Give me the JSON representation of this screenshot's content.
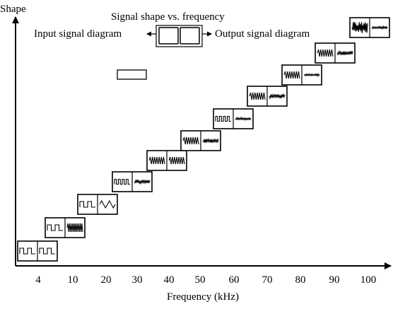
{
  "y_axis_label": "Shape",
  "x_axis_label": "Frequency (kHz)",
  "legend": {
    "title": "Signal shape vs. frequency",
    "input_label": "Input signal diagram",
    "output_label": "Output signal diagram"
  },
  "x_ticks": [
    "4",
    "10",
    "20",
    "30",
    "40",
    "50",
    "60",
    "70",
    "80",
    "90",
    "100"
  ],
  "chart_data": {
    "type": "scatter",
    "xlabel": "Frequency (kHz)",
    "ylabel": "Shape",
    "x_ticks": [
      4,
      10,
      20,
      30,
      40,
      50,
      60,
      70,
      80,
      90,
      100
    ],
    "points": [
      {
        "frequency": 4,
        "input": "square",
        "output": "square"
      },
      {
        "frequency": 10,
        "input": "square",
        "output": "sawtooth-dense"
      },
      {
        "frequency": 20,
        "input": "square",
        "output": "triangle"
      },
      {
        "frequency": 30,
        "input": "square-dense",
        "output": "noisy"
      },
      {
        "frequency": 40,
        "input": "sawtooth",
        "output": "sawtooth"
      },
      {
        "frequency": 50,
        "input": "sawtooth",
        "output": "noisy"
      },
      {
        "frequency": 60,
        "input": "square-dense",
        "output": "noisy-small"
      },
      {
        "frequency": 70,
        "input": "sawtooth",
        "output": "noisy"
      },
      {
        "frequency": 80,
        "input": "sawtooth",
        "output": "noisy-small"
      },
      {
        "frequency": 90,
        "input": "sawtooth",
        "output": "noisy"
      },
      {
        "frequency": 100,
        "input": "noisy-large",
        "output": "noisy-small"
      }
    ]
  }
}
